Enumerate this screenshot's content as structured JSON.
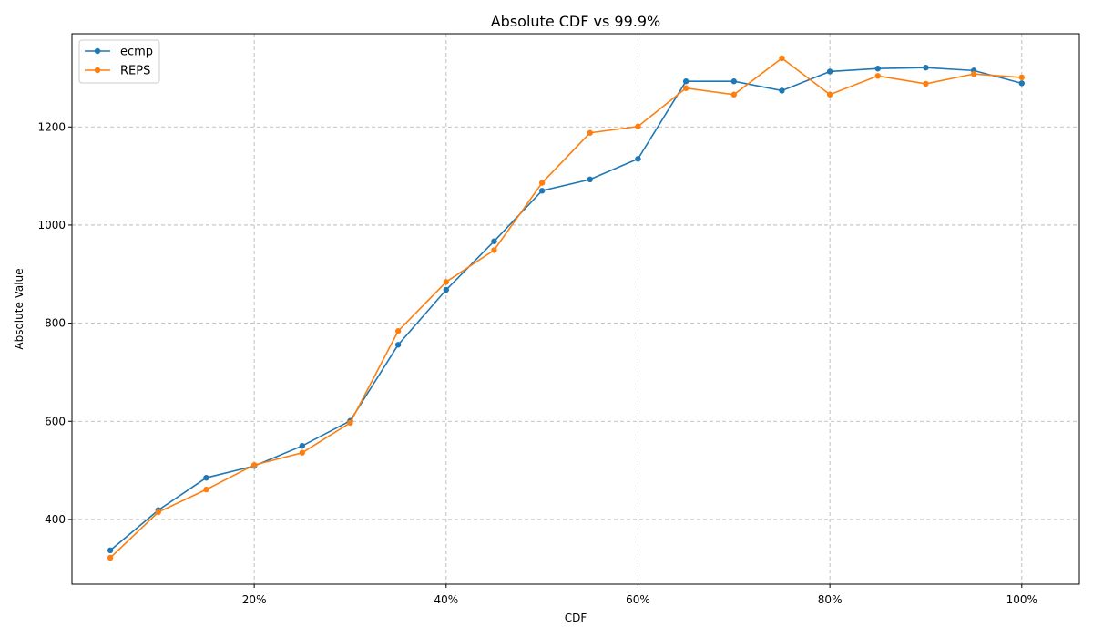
{
  "chart_data": {
    "type": "line",
    "title": "Absolute CDF vs 99.9%",
    "xlabel": "CDF",
    "ylabel": "Absolute Value",
    "x": [
      5,
      10,
      15,
      20,
      25,
      30,
      35,
      40,
      45,
      50,
      55,
      60,
      65,
      70,
      75,
      80,
      85,
      90,
      95,
      100
    ],
    "xlim": [
      1,
      106
    ],
    "ylim": [
      268,
      1390
    ],
    "xticks": [
      {
        "value": 20,
        "label": "20%"
      },
      {
        "value": 40,
        "label": "40%"
      },
      {
        "value": 60,
        "label": "60%"
      },
      {
        "value": 80,
        "label": "80%"
      },
      {
        "value": 100,
        "label": "100%"
      }
    ],
    "yticks": [
      {
        "value": 400,
        "label": "400"
      },
      {
        "value": 600,
        "label": "600"
      },
      {
        "value": 800,
        "label": "800"
      },
      {
        "value": 1000,
        "label": "1000"
      },
      {
        "value": 1200,
        "label": "1200"
      }
    ],
    "grid": true,
    "legend": "top-left",
    "series": [
      {
        "name": "ecmp",
        "color": "#1f77b4",
        "values": [
          337,
          419,
          485,
          509,
          550,
          601,
          756,
          868,
          967,
          1070,
          1093,
          1135,
          1293,
          1293,
          1274,
          1313,
          1319,
          1321,
          1315,
          1289
        ]
      },
      {
        "name": "REPS",
        "color": "#ff7f0e",
        "values": [
          322,
          415,
          461,
          511,
          536,
          597,
          784,
          884,
          949,
          1086,
          1188,
          1201,
          1279,
          1266,
          1340,
          1266,
          1304,
          1288,
          1308,
          1301
        ]
      }
    ]
  }
}
